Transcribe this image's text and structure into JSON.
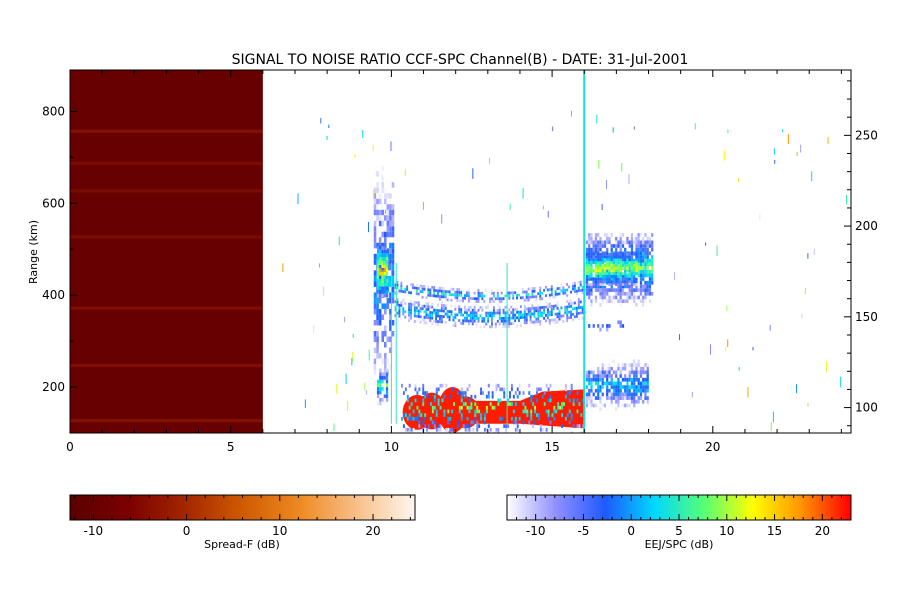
{
  "chart_data": {
    "type": "heatmap",
    "title": "SIGNAL TO NOISE RATIO CCF-SPC Channel(B) - DATE: 31-Jul-2001",
    "xlabel": "",
    "ylabel": "Range (km)",
    "xlim": [
      0,
      24.3
    ],
    "ylim": [
      100,
      890
    ],
    "x_ticks": [
      0,
      5,
      10,
      15,
      20
    ],
    "y_ticks": [
      200,
      400,
      600,
      800
    ],
    "y2_ticks": [
      100,
      150,
      200,
      250
    ],
    "y2lim": [
      86,
      286
    ],
    "grid": false,
    "colorbars": [
      {
        "label": "Spread-F (dB)",
        "range": [
          -12.5,
          24.5
        ],
        "ticks": [
          -10,
          0,
          10,
          20
        ],
        "colors": [
          "#5a0000",
          "#7a0000",
          "#a32600",
          "#cf5a00",
          "#ee8a22",
          "#f8c08a",
          "#fff6ee"
        ]
      },
      {
        "label": "EEJ/SPC (dB)",
        "range": [
          -13,
          23
        ],
        "ticks": [
          -10,
          -5,
          0,
          5,
          10,
          15,
          20
        ],
        "colors": [
          "#ffffff",
          "#8f8fff",
          "#1e5aff",
          "#00d8ff",
          "#55ff77",
          "#ffff00",
          "#ff9200",
          "#ff0000"
        ]
      }
    ],
    "regions": [
      {
        "name": "Spread-F",
        "x": [
          0,
          6.0
        ],
        "y": [
          100,
          890
        ],
        "value_db": -10
      },
      {
        "name": "Echo layer",
        "x": [
          9.5,
          10.0
        ],
        "y": [
          120,
          700
        ],
        "value_db": 5
      },
      {
        "name": "Echo layer",
        "x": [
          10.0,
          16.0
        ],
        "y": [
          300,
          420
        ],
        "value_db": 0
      },
      {
        "name": "Echo layer",
        "x": [
          10.3,
          16.0
        ],
        "y": [
          110,
          200
        ],
        "value_db": 22
      },
      {
        "name": "Echo layer",
        "x": [
          16.0,
          18.1
        ],
        "y": [
          360,
          540
        ],
        "value_db": 3
      },
      {
        "name": "Echo layer",
        "x": [
          16.0,
          18.0
        ],
        "y": [
          120,
          270
        ],
        "value_db": 0
      }
    ]
  }
}
